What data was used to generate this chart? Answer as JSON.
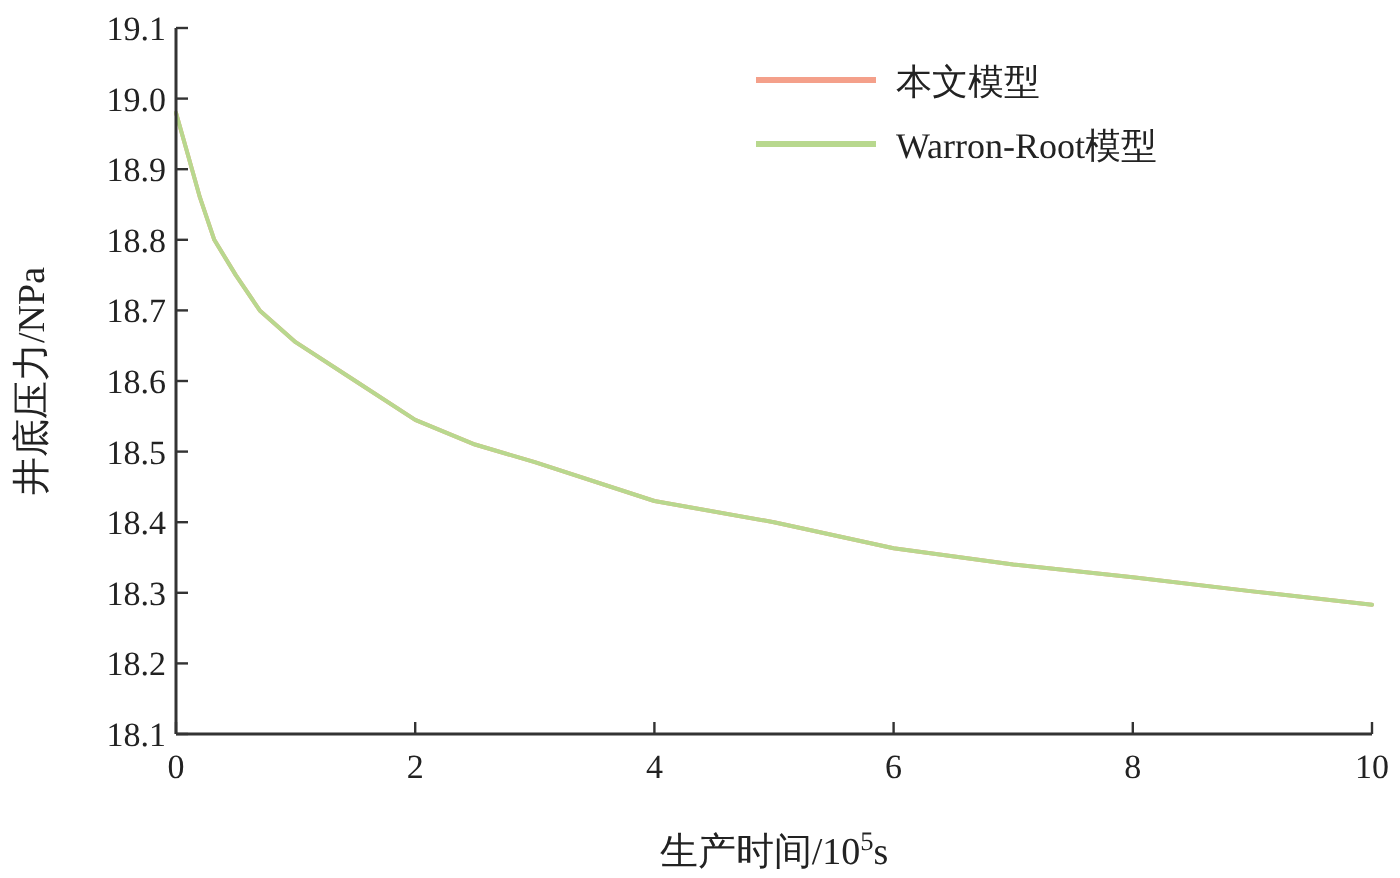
{
  "chart_data": {
    "type": "line",
    "xlabel": "生产时间/10$^{5}$s",
    "ylabel": "井底压力/NPa",
    "x": [
      0,
      0.1,
      0.2,
      0.32,
      0.5,
      0.7,
      1,
      1.5,
      2,
      2.5,
      3,
      4,
      5,
      6,
      7,
      8,
      9,
      10
    ],
    "series": [
      {
        "name": "本文模型",
        "color": "#f4a08a",
        "values": [
          18.98,
          18.92,
          18.86,
          18.8,
          18.75,
          18.7,
          18.655,
          18.6,
          18.545,
          18.51,
          18.485,
          18.43,
          18.4,
          18.363,
          18.34,
          18.322,
          18.302,
          18.283
        ]
      },
      {
        "name": "Warron-Root模型",
        "color": "#b8d88e",
        "values": [
          18.98,
          18.92,
          18.86,
          18.8,
          18.75,
          18.7,
          18.655,
          18.6,
          18.545,
          18.51,
          18.485,
          18.43,
          18.4,
          18.363,
          18.34,
          18.322,
          18.302,
          18.283
        ]
      }
    ],
    "xlim": [
      0,
      10
    ],
    "xticks": [
      0,
      2,
      4,
      6,
      8,
      10
    ],
    "ylim": [
      18.1,
      19.1
    ],
    "yticks": [
      {
        "value": 18.1,
        "label": "18.1"
      },
      {
        "value": 18.2,
        "label": "18.2"
      },
      {
        "value": 18.3,
        "label": "18.3"
      },
      {
        "value": 18.4,
        "label": "18.4"
      },
      {
        "value": 18.5,
        "label": "18.5"
      },
      {
        "value": 18.6,
        "label": "18.6"
      },
      {
        "value": 18.7,
        "label": "18.7"
      },
      {
        "value": 18.8,
        "label": "18.8"
      },
      {
        "value": 18.9,
        "label": "18.9"
      },
      {
        "value": 19.0,
        "label": "19.0"
      },
      {
        "value": 19.1,
        "label": "19.1"
      }
    ],
    "legend": "top right",
    "grid": false,
    "marker": "none",
    "line_style": "solid"
  }
}
